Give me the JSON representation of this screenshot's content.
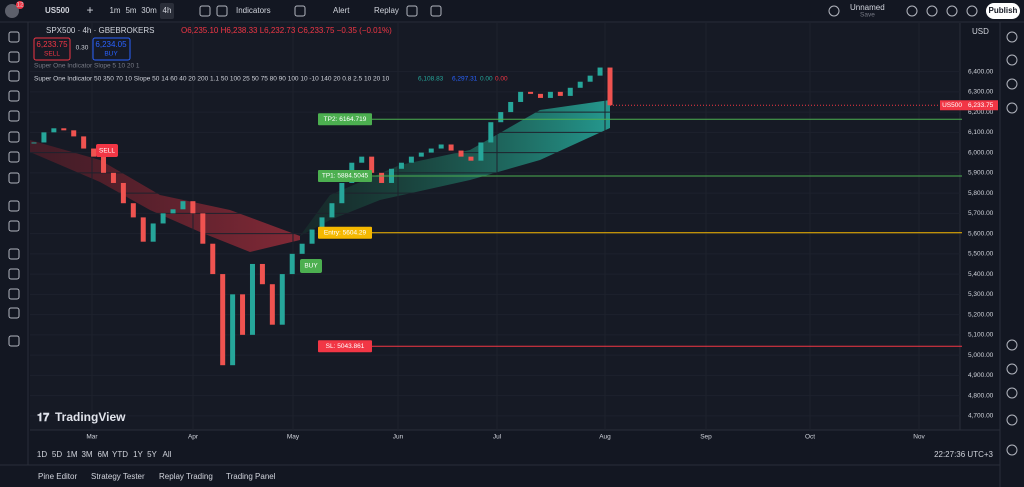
{
  "toolbar": {
    "notifications": "12",
    "symbol": "US500",
    "intervals": [
      "1m",
      "5m",
      "30m",
      "4h"
    ],
    "indicators": "Indicators",
    "alert": "Alert",
    "replay": "Replay",
    "layout_name": "Unnamed",
    "layout_status": "Save",
    "publish": "Publish"
  },
  "legend": {
    "title": "SPX500 · 4h · GBEBROKERS",
    "ohlc": "O6,235.10 H6,238.33 L6,232.73 C6,233.75 −0.35 (−0.01%)",
    "sell_price": "6,233.75",
    "sell": "SELL",
    "spread": "0.30",
    "buy_price": "6,234.05",
    "buy": "BUY",
    "indicator1": "Super One Indicator Slope 5 10 20 1",
    "indicator2": "Super One Indicator 50 350 70 10 Slope 50 14 60 40 20 200 1.1 50 100 25 50 75 80 90 100 10 -10 140 20 0.8 2.5 10 20 10",
    "indicator_values": [
      {
        "label": "6,108.83",
        "color": "#26a69a"
      },
      {
        "label": "6,297.31",
        "color": "#2962ff"
      },
      {
        "label": "0.00",
        "color": "#26a69a"
      },
      {
        "label": "0.00",
        "color": "#f23645"
      }
    ]
  },
  "chart": {
    "currency": "USD",
    "ylim": [
      4630,
      6640
    ],
    "yticks": [
      {
        "value": 4700,
        "label": "4,700.00"
      },
      {
        "value": 4800,
        "label": "4,800.00"
      },
      {
        "value": 4900,
        "label": "4,900.00"
      },
      {
        "value": 5000,
        "label": "5,000.00"
      },
      {
        "value": 5100,
        "label": "5,100.00"
      },
      {
        "value": 5200,
        "label": "5,200.00"
      },
      {
        "value": 5300,
        "label": "5,300.00"
      },
      {
        "value": 5400,
        "label": "5,400.00"
      },
      {
        "value": 5500,
        "label": "5,500.00"
      },
      {
        "value": 5600,
        "label": "5,600.00"
      },
      {
        "value": 5700,
        "label": "5,700.00"
      },
      {
        "value": 5800,
        "label": "5,800.00"
      },
      {
        "value": 5900,
        "label": "5,900.00"
      },
      {
        "value": 6000,
        "label": "6,000.00"
      },
      {
        "value": 6100,
        "label": "6,100.00"
      },
      {
        "value": 6200,
        "label": "6,200.00"
      },
      {
        "value": 6300,
        "label": "6,300.00"
      },
      {
        "value": 6400,
        "label": "6,400.00"
      }
    ],
    "time_labels": [
      "Mar",
      "Apr",
      "May",
      "Jun",
      "Jul",
      "Aug",
      "Sep",
      "Oct",
      "Nov"
    ],
    "closes": [
      6050,
      6100,
      6120,
      6110,
      6080,
      6020,
      5980,
      5900,
      5850,
      5750,
      5680,
      5560,
      5650,
      5700,
      5720,
      5760,
      5700,
      5550,
      5400,
      4950,
      5300,
      5100,
      5450,
      5350,
      5150,
      5400,
      5500,
      5550,
      5620,
      5680,
      5750,
      5850,
      5950,
      5980,
      5900,
      5850,
      5920,
      5950,
      5980,
      6000,
      6020,
      6040,
      6010,
      5980,
      5960,
      6050,
      6150,
      6200,
      6250,
      6300,
      6290,
      6270,
      6300,
      6280,
      6320,
      6350,
      6380,
      6420,
      6233.75
    ],
    "up_color": "#26a69a",
    "down_color": "#ef5350",
    "levels": [
      {
        "label": "TP2: 6164.719",
        "value": 6164.719,
        "color": "#4caf50"
      },
      {
        "label": "TP1: 5884.5045",
        "value": 5884.5045,
        "color": "#4caf50"
      },
      {
        "label": "Entry: 5604.29",
        "value": 5604.29,
        "color": "#f5b800"
      },
      {
        "label": "SL: 5043.861",
        "value": 5043.861,
        "color": "#f23645"
      }
    ],
    "last_price": {
      "symbol": "US500",
      "value": 6233.75,
      "label": "6,233.75"
    },
    "sell_signal": "SELL",
    "buy_signal": "BUY",
    "watermark": "TradingView"
  },
  "range_bar": {
    "ranges": [
      "1D",
      "5D",
      "1M",
      "3M",
      "6M",
      "YTD",
      "1Y",
      "5Y",
      "All"
    ],
    "clock": "22:27:36 UTC+3"
  },
  "bottom_tabs": [
    "Pine Editor",
    "Strategy Tester",
    "Replay Trading",
    "Trading Panel"
  ]
}
